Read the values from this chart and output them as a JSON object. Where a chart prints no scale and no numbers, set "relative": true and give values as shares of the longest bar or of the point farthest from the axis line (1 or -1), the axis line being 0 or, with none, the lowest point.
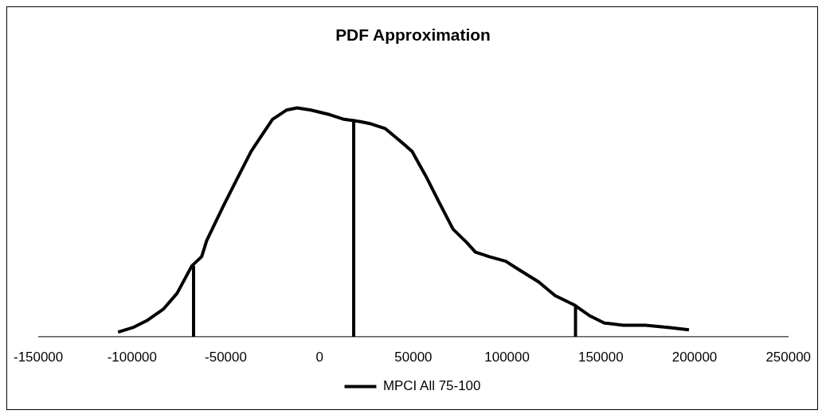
{
  "chart_data": {
    "type": "line",
    "title": "PDF Approximation",
    "relative": true,
    "legend": "bottom",
    "marker": "none",
    "line_style": "solid",
    "xlim": [
      -150000,
      250000
    ],
    "xticks": [
      -150000,
      -100000,
      -50000,
      0,
      50000,
      100000,
      150000,
      200000,
      250000
    ],
    "grid": false,
    "tick_labels": "x",
    "series": [
      {
        "name": "MPCI All 75-100",
        "color": "#000000",
        "x": [
          -107500,
          -99600,
          -92200,
          -83400,
          -76000,
          -68100,
          -62900,
          -60200,
          -51400,
          -44000,
          -36500,
          -30800,
          -25100,
          -17700,
          -12000,
          -4600,
          5500,
          13000,
          21700,
          27400,
          34900,
          42300,
          49300,
          56800,
          64200,
          71200,
          78700,
          83100,
          90500,
          99300,
          105000,
          116800,
          125600,
          135600,
          144400,
          151900,
          161900,
          173800,
          186900,
          197000
        ],
        "values": [
          0.02,
          0.04,
          0.07,
          0.12,
          0.19,
          0.31,
          0.35,
          0.42,
          0.57,
          0.69,
          0.81,
          0.88,
          0.95,
          0.99,
          1,
          0.99,
          0.97,
          0.95,
          0.94,
          0.93,
          0.91,
          0.86,
          0.81,
          0.7,
          0.58,
          0.47,
          0.41,
          0.37,
          0.35,
          0.33,
          0.3,
          0.24,
          0.18,
          0.14,
          0.09,
          0.06,
          0.05,
          0.05,
          0.04,
          0.03
        ]
      },
      {
        "color": "#000000",
        "x": [
          -67200,
          -67200
        ],
        "values": [
          0,
          0.31
        ]
      },
      {
        "color": "#000000",
        "x": [
          18200,
          18200
        ],
        "values": [
          0,
          0.95
        ]
      },
      {
        "color": "#000000",
        "x": [
          136500,
          136500
        ],
        "values": [
          0,
          0.14
        ]
      }
    ]
  }
}
